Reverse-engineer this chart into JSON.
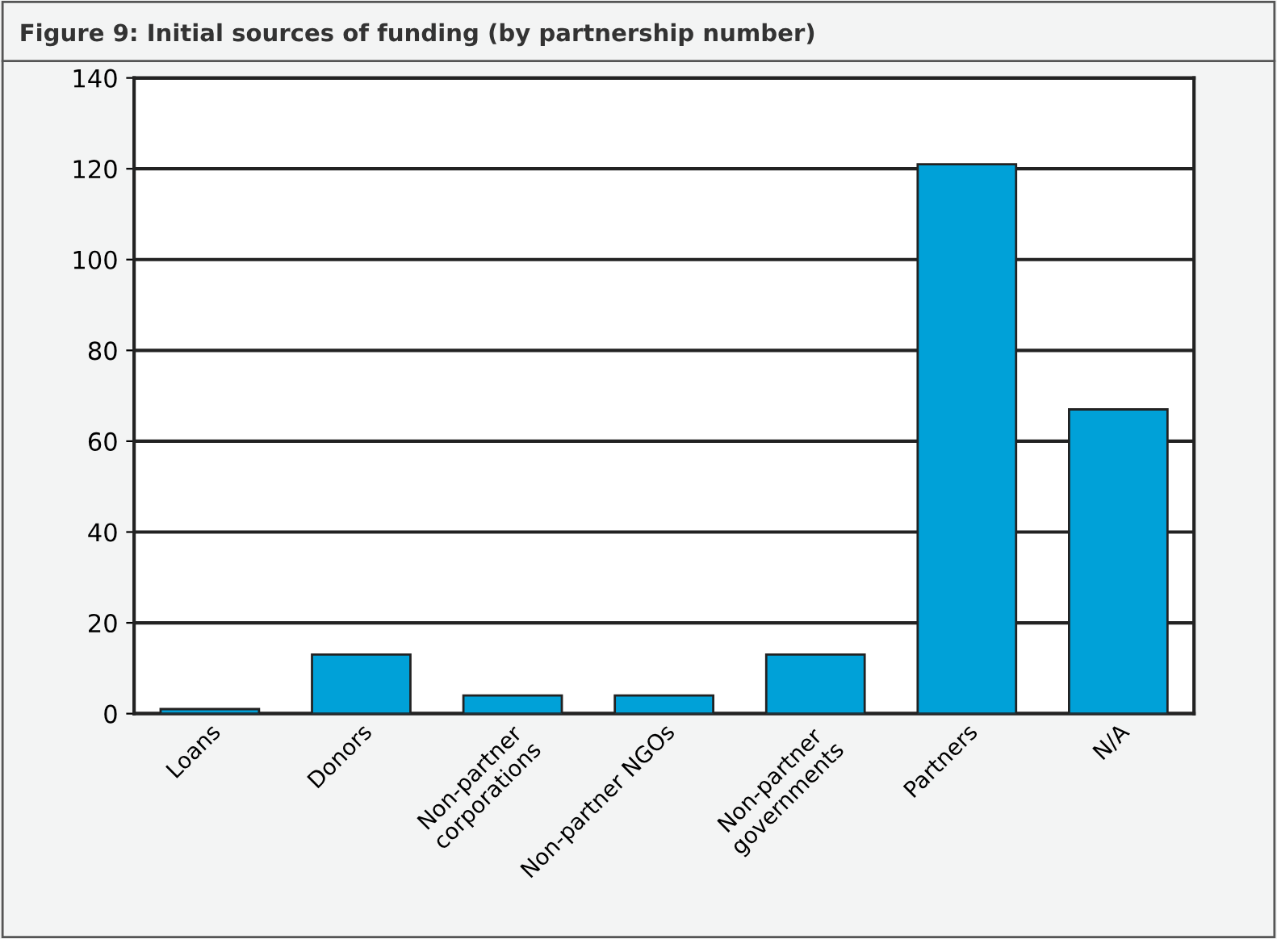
{
  "chart_data": {
    "type": "bar",
    "title": "Figure 9: Initial sources of funding (by partnership number)",
    "categories": [
      "Loans",
      "Donors",
      "Non-partner\ncorporations",
      "Non-partner NGOs",
      "Non-partner\ngovernments",
      "Partners",
      "N/A"
    ],
    "values": [
      1,
      13,
      4,
      4,
      13,
      121,
      67
    ],
    "color": "#00a1d8",
    "ylim": [
      0,
      140
    ],
    "yticks": [
      0,
      20,
      40,
      60,
      80,
      100,
      120,
      140
    ],
    "grid": "y"
  }
}
